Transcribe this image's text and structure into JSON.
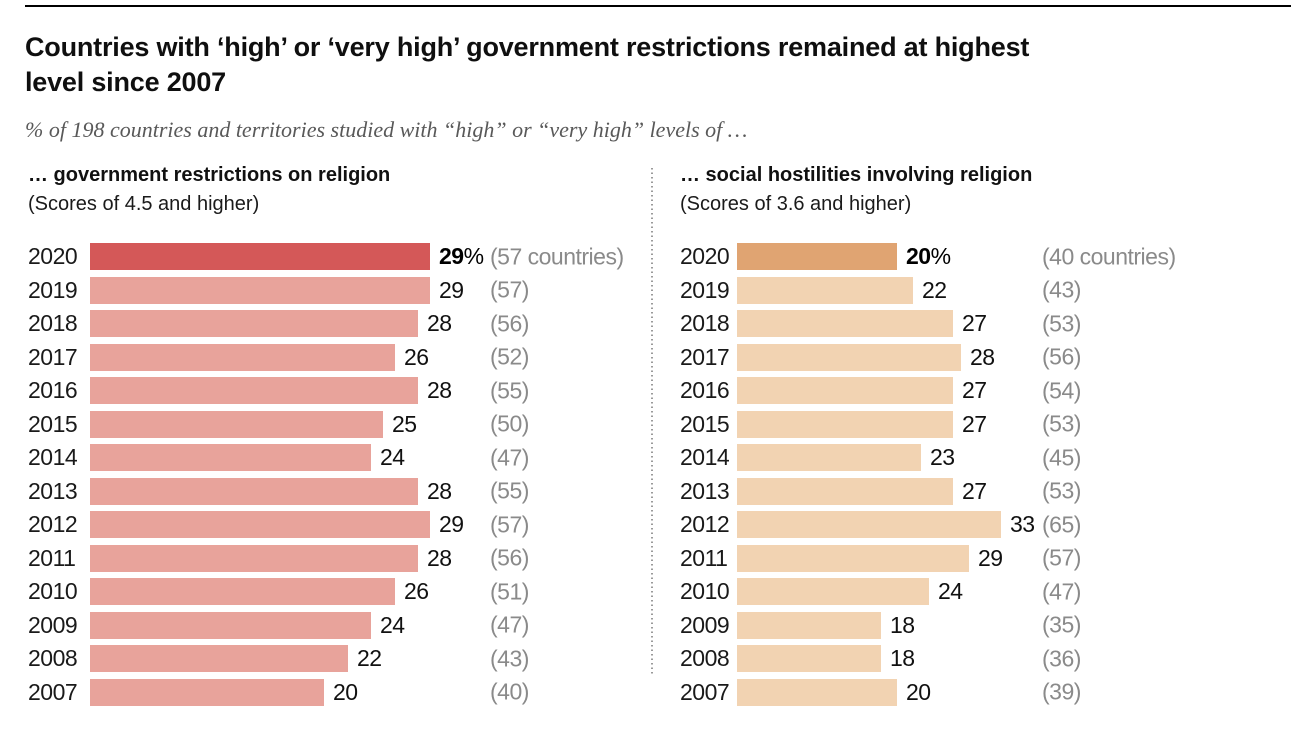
{
  "page": {
    "title_lines": [
      "Countries with ‘high’ or ‘very high’ government restrictions remained at highest",
      "level since 2007"
    ],
    "subtitle": "% of 198 countries and territories studied with “high” or “very high” levels of …"
  },
  "chart_data": [
    {
      "type": "bar",
      "orientation": "horizontal",
      "title": "… government restrictions on religion",
      "subtitle": "(Scores of 4.5 and higher)",
      "unit": "%",
      "categories": [
        "2020",
        "2019",
        "2018",
        "2017",
        "2016",
        "2015",
        "2014",
        "2013",
        "2012",
        "2011",
        "2010",
        "2009",
        "2008",
        "2007"
      ],
      "values": [
        29,
        29,
        28,
        26,
        28,
        25,
        24,
        28,
        29,
        28,
        26,
        24,
        22,
        20
      ],
      "counts": [
        "(57 countries)",
        "(57)",
        "(56)",
        "(52)",
        "(55)",
        "(50)",
        "(47)",
        "(55)",
        "(57)",
        "(56)",
        "(51)",
        "(47)",
        "(43)",
        "(40)"
      ],
      "xlim": [
        0,
        33
      ],
      "highlight_color": "#d45858",
      "bar_color": "#e8a39b",
      "value_label_color": "#111111",
      "count_label_color": "#8a8a8a",
      "legend": "none",
      "grid": false
    },
    {
      "type": "bar",
      "orientation": "horizontal",
      "title": "… social hostilities involving religion",
      "subtitle": "(Scores of 3.6 and higher)",
      "unit": "%",
      "categories": [
        "2020",
        "2019",
        "2018",
        "2017",
        "2016",
        "2015",
        "2014",
        "2013",
        "2012",
        "2011",
        "2010",
        "2009",
        "2008",
        "2007"
      ],
      "values": [
        20,
        22,
        27,
        28,
        27,
        27,
        23,
        27,
        33,
        29,
        24,
        18,
        18,
        20
      ],
      "counts": [
        "(40 countries)",
        "(43)",
        "(53)",
        "(56)",
        "(54)",
        "(53)",
        "(45)",
        "(53)",
        "(65)",
        "(57)",
        "(47)",
        "(35)",
        "(36)",
        "(39)"
      ],
      "xlim": [
        0,
        33
      ],
      "highlight_color": "#e0a472",
      "bar_color": "#f2d3b2",
      "value_label_color": "#111111",
      "count_label_color": "#8a8a8a",
      "legend": "none",
      "grid": false
    }
  ]
}
